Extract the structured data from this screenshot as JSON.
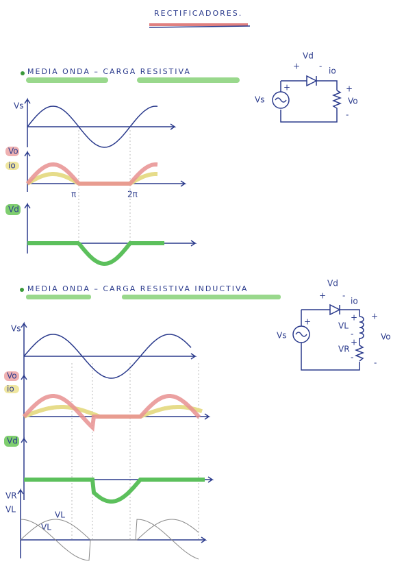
{
  "title": "RECTIFICADORES.",
  "sections": [
    {
      "heading": "MEDIA ONDA – CARGA RESISTIVA",
      "labels": {
        "vs": "Vs",
        "vo": "Vo",
        "io": "io",
        "vd": "Vd",
        "pi": "π",
        "two_pi": "2π"
      },
      "circuit": {
        "vd": "Vd",
        "vd_plus": "+",
        "vd_minus": "-",
        "io": "io",
        "vs": "Vs",
        "vs_plus": "+",
        "vo": "Vo",
        "vo_plus": "+",
        "vo_minus": "-"
      }
    },
    {
      "heading": "MEDIA ONDA – CARGA RESISTIVA INDUCTIVA",
      "labels": {
        "vs": "Vs",
        "vo": "Vo",
        "io": "io",
        "vd": "Vd",
        "vr": "VR",
        "vl": "VL",
        "wave_vl": "VL",
        "wave_vr": "VL"
      },
      "circuit": {
        "vd": "Vd",
        "vd_plus": "+",
        "vd_minus": "-",
        "io": "io",
        "vs": "Vs",
        "vs_plus": "+",
        "vl": "VL",
        "vl_plus": "+",
        "vl_minus": "-",
        "vr": "VR",
        "vr_plus": "+",
        "vr_minus": "-",
        "vo": "Vo",
        "vo_plus": "+",
        "vo_minus": "-"
      }
    }
  ]
}
